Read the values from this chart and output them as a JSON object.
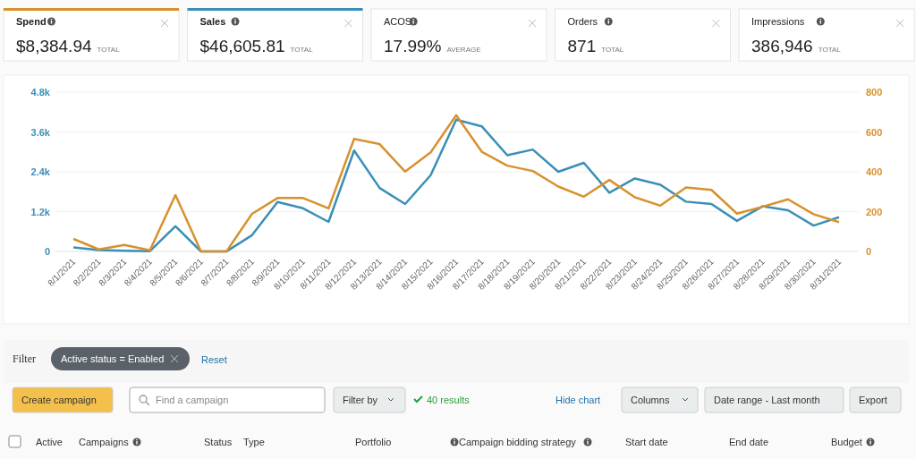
{
  "chart_data": [
    {
      "type": "other",
      "categories": [
        "Spend",
        "Sales",
        "ACOS",
        "Orders",
        "Impressions"
      ],
      "value_labels": [
        "$8,384.94",
        "$46,605.81",
        "17.99%",
        "871",
        "386,946"
      ],
      "annotations": [
        "TOTAL",
        "TOTAL",
        "AVERAGE",
        "TOTAL",
        "TOTAL"
      ]
    },
    {
      "type": "line",
      "categories": [
        "8/1/2021",
        "8/2/2021",
        "8/3/2021",
        "8/4/2021",
        "8/5/2021",
        "8/6/2021",
        "8/7/2021",
        "8/8/2021",
        "8/9/2021",
        "8/10/2021",
        "8/11/2021",
        "8/12/2021",
        "8/13/2021",
        "8/14/2021",
        "8/15/2021",
        "8/16/2021",
        "8/17/2021",
        "8/18/2021",
        "8/19/2021",
        "8/20/2021",
        "8/21/2021",
        "8/22/2021",
        "8/23/2021",
        "8/24/2021",
        "8/25/2021",
        "8/26/2021",
        "8/27/2021",
        "8/28/2021",
        "8/29/2021",
        "8/30/2021",
        "8/31/2021"
      ],
      "series": [
        {
          "color": "#3a8fb7",
          "values": [
            120,
            40,
            20,
            10,
            760,
            0,
            0,
            490,
            1490,
            1300,
            890,
            3040,
            1910,
            1430,
            2300,
            3970,
            3770,
            2900,
            3070,
            2400,
            2670,
            1770,
            2200,
            2010,
            1500,
            1430,
            920,
            1360,
            1240,
            780,
            1030
          ]
        },
        {
          "color": "#d8912c",
          "axis": "y2",
          "values": [
            63,
            10,
            33,
            6,
            283,
            0,
            0,
            189,
            268,
            268,
            216,
            565,
            539,
            401,
            498,
            684,
            501,
            431,
            404,
            326,
            275,
            359,
            272,
            230,
            321,
            309,
            190,
            224,
            262,
            187,
            147
          ]
        }
      ],
      "ylim": [
        0,
        4800
      ],
      "yticks": [
        0,
        {
          "value": 1200,
          "label": "1.2k"
        },
        {
          "value": 2400,
          "label": "2.4k"
        },
        {
          "value": 3600,
          "label": "3.6k"
        },
        {
          "value": 4800,
          "label": "4.8k"
        }
      ],
      "y2lim": [
        0,
        800
      ],
      "y2ticks": [
        0,
        200,
        400,
        600,
        800
      ],
      "grid": "y"
    },
    {
      "type": "other",
      "annotations": [
        "Filter",
        "Active status = Enabled",
        "Reset",
        "Create campaign",
        "Find a campaign",
        "Filter by",
        "40 results",
        "Hide chart",
        "Columns",
        "Date range - Last month",
        "Export",
        "Active",
        "Campaigns",
        "Status",
        "Type",
        "Portfolio",
        "Campaign bidding strategy",
        "Start date",
        "End date",
        "Budget"
      ]
    }
  ]
}
